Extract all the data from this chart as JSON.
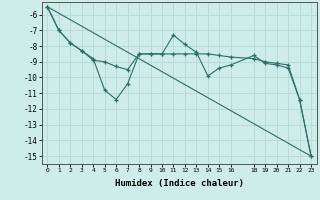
{
  "xlabel": "Humidex (Indice chaleur)",
  "ylabel": "",
  "background_color": "#ceecea",
  "grid_color": "#b8dcd8",
  "line_color": "#2e6e68",
  "xlim": [
    -0.5,
    23.5
  ],
  "ylim": [
    -15.5,
    -5.2
  ],
  "yticks": [
    -6,
    -7,
    -8,
    -9,
    -10,
    -11,
    -12,
    -13,
    -14,
    -15
  ],
  "xticks": [
    0,
    1,
    2,
    3,
    4,
    5,
    6,
    7,
    8,
    9,
    10,
    11,
    12,
    13,
    14,
    15,
    16,
    18,
    19,
    20,
    21,
    22,
    23
  ],
  "line1_x": [
    0,
    1,
    2,
    3,
    4,
    5,
    6,
    7,
    8,
    9,
    10,
    11,
    12,
    13,
    14,
    15,
    16,
    18,
    19,
    20,
    21,
    22,
    23
  ],
  "line1_y": [
    -5.5,
    -7.0,
    -7.8,
    -8.3,
    -8.8,
    -10.8,
    -11.4,
    -10.4,
    -8.5,
    -8.5,
    -8.5,
    -7.3,
    -7.9,
    -8.4,
    -9.9,
    -9.4,
    -9.2,
    -8.6,
    -9.1,
    -9.2,
    -9.4,
    -11.4,
    -15.0
  ],
  "line2_x": [
    0,
    1,
    2,
    3,
    4,
    5,
    6,
    7,
    8,
    9,
    10,
    11,
    12,
    13,
    14,
    15,
    16,
    18,
    19,
    20,
    21,
    22,
    23
  ],
  "line2_y": [
    -5.5,
    -7.0,
    -7.8,
    -8.3,
    -8.9,
    -9.0,
    -9.3,
    -9.5,
    -8.5,
    -8.5,
    -8.5,
    -8.5,
    -8.5,
    -8.5,
    -8.5,
    -8.6,
    -8.7,
    -8.8,
    -9.0,
    -9.1,
    -9.2,
    -11.4,
    -15.0
  ],
  "line3_x": [
    0,
    23
  ],
  "line3_y": [
    -5.5,
    -15.0
  ]
}
